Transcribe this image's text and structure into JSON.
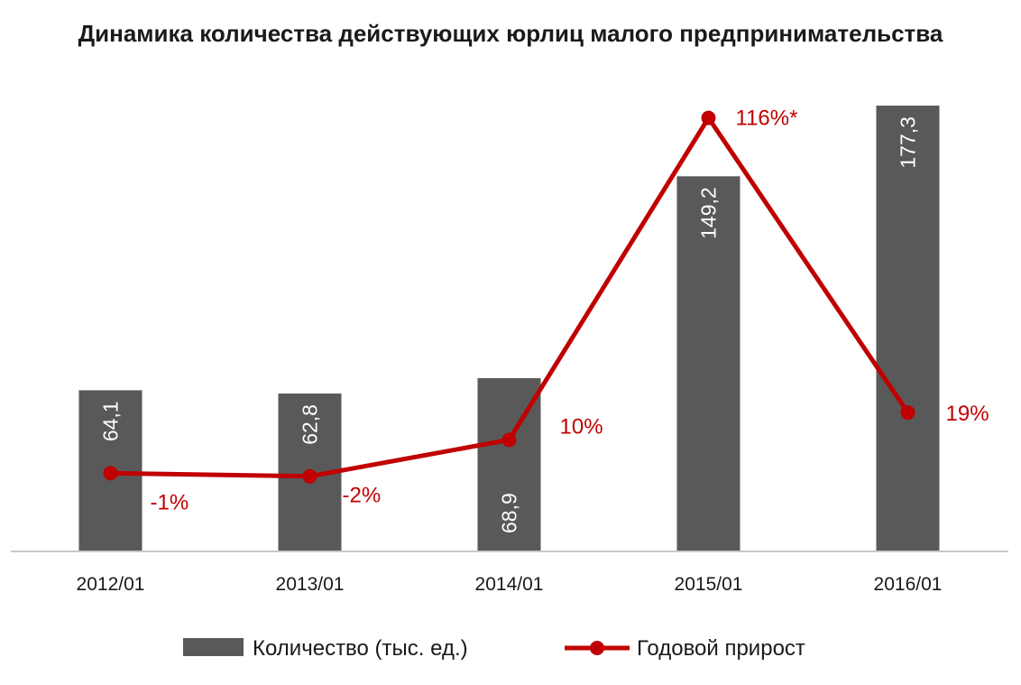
{
  "chart_data": {
    "type": "bar",
    "title": "Динамика количества действующих юрлиц малого  предпринимательства",
    "categories": [
      "2012/01",
      "2013/01",
      "2014/01",
      "2015/01",
      "2016/01"
    ],
    "series": [
      {
        "name": "Количество (тыс. ед.)",
        "type": "bar",
        "color": "#595959",
        "values": [
          64.1,
          62.8,
          68.9,
          149.2,
          177.3
        ],
        "labels": [
          "64,1",
          "62,8",
          "68,9",
          "149,2",
          "177,3"
        ]
      },
      {
        "name": "Годовой прирост",
        "type": "line",
        "color": "#c00000",
        "values": [
          -1,
          -2,
          10,
          116,
          19
        ],
        "labels": [
          "-1%",
          "-2%",
          "10%",
          "116%*",
          "19%"
        ]
      }
    ],
    "xlabel": "",
    "ylabel": "",
    "grid": false,
    "legend": "bottom"
  }
}
